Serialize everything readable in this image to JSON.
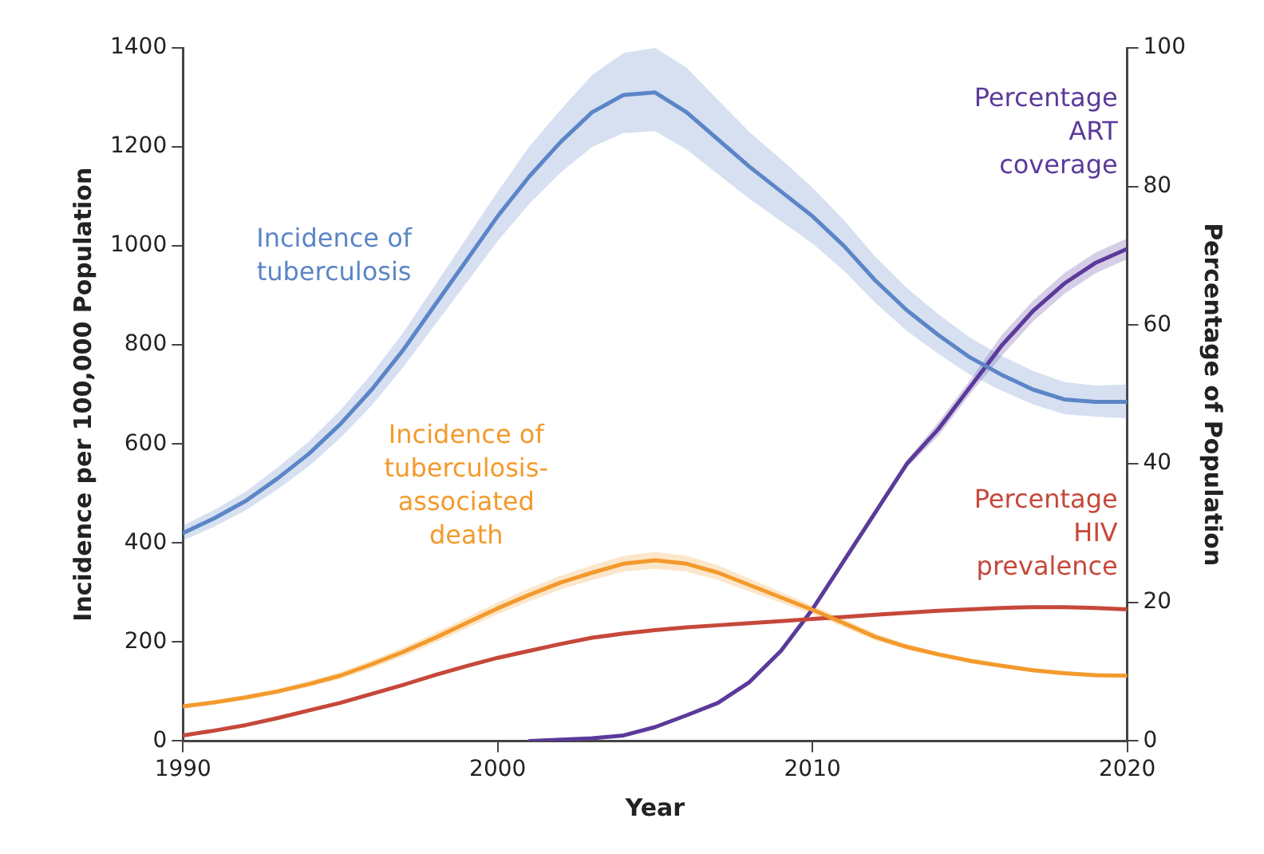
{
  "chart_data": {
    "type": "line",
    "xlabel": "Year",
    "ylabel": "Incidence per 100,000 Population",
    "y2label": "Percentage of Population",
    "x": [
      1990,
      1991,
      1992,
      1993,
      1994,
      1995,
      1996,
      1997,
      1998,
      1999,
      2000,
      2001,
      2002,
      2003,
      2004,
      2005,
      2006,
      2007,
      2008,
      2009,
      2010,
      2011,
      2012,
      2013,
      2014,
      2015,
      2016,
      2017,
      2018,
      2019,
      2020
    ],
    "xlim": [
      1990,
      2020
    ],
    "xticks": [
      1990,
      2000,
      2010,
      2020
    ],
    "ylim": [
      0,
      1400
    ],
    "yticks": [
      0,
      200,
      400,
      600,
      800,
      1000,
      1200,
      1400
    ],
    "y2lim": [
      0,
      100
    ],
    "y2ticks": [
      0,
      20,
      40,
      60,
      80,
      100
    ],
    "grid": false,
    "legend": false,
    "marker": "none",
    "line_style": "solid",
    "series": [
      {
        "name": "Incidence of tuberculosis",
        "color": "#5b85c6",
        "values": [
          420,
          450,
          485,
          530,
          580,
          640,
          710,
          790,
          880,
          970,
          1060,
          1140,
          1210,
          1270,
          1305,
          1310,
          1270,
          1215,
          1160,
          1110,
          1060,
          1000,
          930,
          870,
          820,
          775,
          740,
          710,
          690,
          685,
          685
        ],
        "lower": [
          405,
          433,
          466,
          508,
          555,
          612,
          678,
          755,
          840,
          925,
          1010,
          1085,
          1148,
          1200,
          1228,
          1232,
          1195,
          1145,
          1095,
          1050,
          1005,
          950,
          885,
          828,
          782,
          740,
          708,
          680,
          660,
          655,
          652
        ],
        "upper": [
          435,
          467,
          504,
          552,
          605,
          668,
          742,
          825,
          920,
          1015,
          1110,
          1200,
          1275,
          1345,
          1390,
          1400,
          1360,
          1295,
          1230,
          1175,
          1118,
          1052,
          978,
          915,
          862,
          815,
          778,
          748,
          725,
          718,
          720
        ]
      },
      {
        "name": "Incidence of tuberculosis-associated death",
        "color": "#f39a2c",
        "values": [
          70,
          78,
          88,
          100,
          115,
          132,
          155,
          180,
          208,
          238,
          268,
          295,
          320,
          340,
          358,
          365,
          358,
          340,
          315,
          290,
          265,
          238,
          210,
          190,
          175,
          162,
          152,
          143,
          137,
          133,
          132
        ],
        "lower": [
          66,
          74,
          83,
          95,
          109,
          125,
          147,
          171,
          198,
          227,
          256,
          282,
          306,
          325,
          342,
          348,
          342,
          325,
          302,
          279,
          256,
          230,
          203,
          184,
          170,
          157,
          147,
          139,
          133,
          129,
          128
        ],
        "upper": [
          74,
          82,
          93,
          105,
          121,
          139,
          163,
          189,
          218,
          249,
          280,
          308,
          334,
          355,
          374,
          382,
          374,
          355,
          328,
          301,
          274,
          246,
          217,
          196,
          180,
          167,
          157,
          147,
          141,
          137,
          136
        ]
      },
      {
        "name": "Percentage HIV prevalence",
        "color": "#c6483a",
        "axis": "y2",
        "values": [
          0.8,
          1.5,
          2.3,
          3.3,
          4.4,
          5.5,
          6.8,
          8.1,
          9.5,
          10.8,
          12.0,
          13.0,
          14.0,
          14.9,
          15.5,
          16.0,
          16.4,
          16.7,
          17.0,
          17.3,
          17.6,
          17.9,
          18.2,
          18.5,
          18.8,
          19.0,
          19.2,
          19.3,
          19.3,
          19.2,
          19.0
        ]
      },
      {
        "name": "Percentage ART coverage",
        "color": "#5b3a9a",
        "axis": "y2",
        "x": [
          2001,
          2002,
          2003,
          2004,
          2005,
          2006,
          2007,
          2008,
          2009,
          2010,
          2011,
          2012,
          2013,
          2014,
          2015,
          2016,
          2017,
          2018,
          2019,
          2020
        ],
        "values": [
          0,
          0.2,
          0.4,
          0.8,
          2,
          3.7,
          5.5,
          8.5,
          13,
          19,
          26,
          33,
          40,
          45,
          51,
          57,
          62,
          66,
          69,
          71
        ],
        "lower": [
          0,
          0.2,
          0.4,
          0.8,
          2,
          3.7,
          5.5,
          8.5,
          13,
          19,
          26,
          33,
          39.5,
          44,
          50,
          55.5,
          60.5,
          64.5,
          67.5,
          69.5
        ],
        "upper": [
          0,
          0.2,
          0.4,
          0.8,
          2,
          3.7,
          5.5,
          8.5,
          13,
          19,
          26,
          33,
          40.5,
          46,
          52,
          58.5,
          63.5,
          67.5,
          70.5,
          72.5
        ]
      }
    ]
  }
}
